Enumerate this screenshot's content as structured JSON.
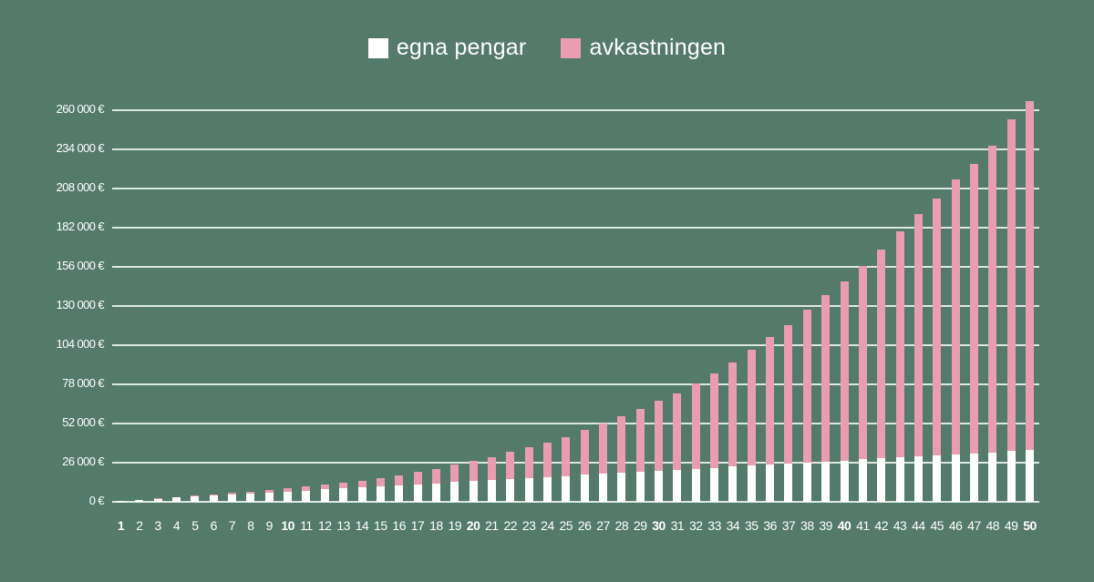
{
  "legend": {
    "items": [
      {
        "label": "egna pengar",
        "color": "#ffffff"
      },
      {
        "label": "avkastningen",
        "color": "#e89db0"
      }
    ]
  },
  "colors": {
    "background": "#537a6b",
    "grid": "#dbe8e2",
    "own_money": "#ffffff",
    "returns": "#e89db0"
  },
  "chart_data": {
    "type": "bar",
    "stacked": true,
    "title": "",
    "xlabel": "",
    "ylabel": "",
    "ylim": [
      0,
      260000
    ],
    "grid": true,
    "legend_position": "top",
    "y_ticks": [
      "0 €",
      "26 000 €",
      "52 000 €",
      "78 000 €",
      "104 000 €",
      "130 000 €",
      "156 000 €",
      "182 000 €",
      "208 000 €",
      "234 000 €",
      "260 000 €"
    ],
    "y_tick_values": [
      0,
      26000,
      52000,
      78000,
      104000,
      130000,
      156000,
      182000,
      208000,
      234000,
      260000
    ],
    "categories": [
      "1",
      "2",
      "3",
      "4",
      "5",
      "6",
      "7",
      "8",
      "9",
      "10",
      "11",
      "12",
      "13",
      "14",
      "15",
      "16",
      "17",
      "18",
      "19",
      "20",
      "21",
      "22",
      "23",
      "24",
      "25",
      "26",
      "27",
      "28",
      "29",
      "30",
      "31",
      "32",
      "33",
      "34",
      "35",
      "36",
      "37",
      "38",
      "39",
      "40",
      "41",
      "42",
      "43",
      "44",
      "45",
      "46",
      "47",
      "48",
      "49",
      "50"
    ],
    "bold_categories": [
      "1",
      "10",
      "20",
      "30",
      "40",
      "50"
    ],
    "series": [
      {
        "name": "egna pengar",
        "values": [
          690,
          1370,
          2060,
          2740,
          3430,
          4120,
          4800,
          5490,
          6170,
          6860,
          7550,
          8230,
          8920,
          9600,
          10290,
          10980,
          11660,
          12350,
          13030,
          13720,
          14410,
          15090,
          15780,
          16460,
          17150,
          17840,
          18520,
          19210,
          19890,
          20580,
          21270,
          21950,
          22640,
          23320,
          24010,
          24700,
          25380,
          26070,
          26750,
          27440,
          28130,
          28810,
          29500,
          30180,
          30870,
          31560,
          32240,
          32930,
          33610,
          34300
        ]
      },
      {
        "name": "avkastningen",
        "values": [
          60,
          130,
          200,
          360,
          520,
          780,
          1000,
          1300,
          1600,
          2000,
          2500,
          3000,
          3700,
          4500,
          5400,
          6600,
          8100,
          9700,
          11500,
          13500,
          15400,
          18000,
          20400,
          22900,
          26000,
          29800,
          33500,
          37600,
          41700,
          46300,
          50700,
          56500,
          62500,
          69400,
          76800,
          84500,
          92100,
          101500,
          110600,
          118900,
          128500,
          138700,
          150000,
          161100,
          170500,
          182400,
          192100,
          203500,
          220200,
          231500
        ]
      }
    ]
  }
}
